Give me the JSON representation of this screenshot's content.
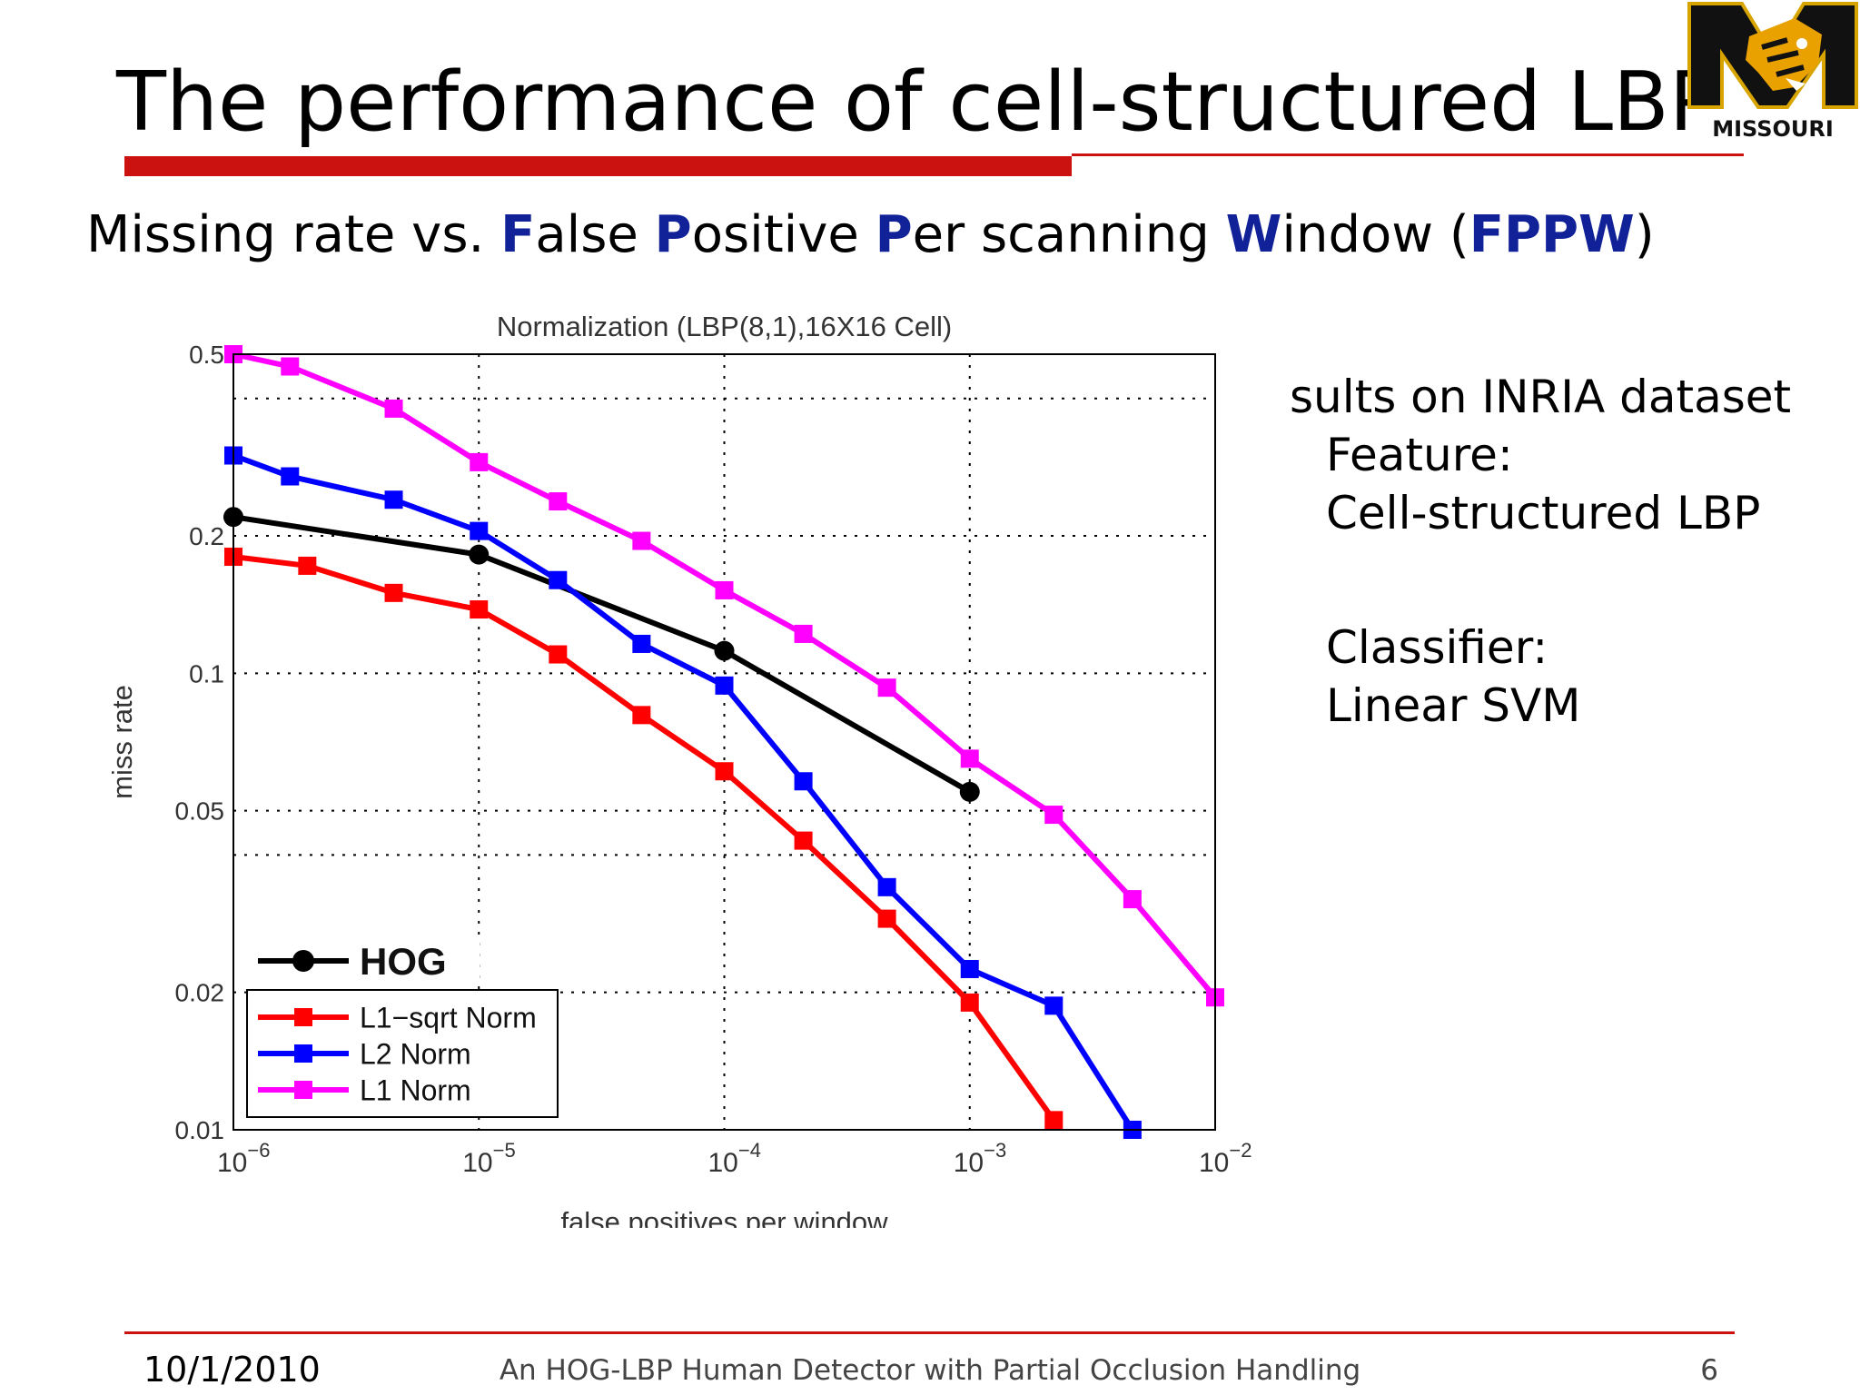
{
  "slide": {
    "title": "The performance of cell-structured LBP",
    "subtitle_parts": [
      {
        "text": "Missing rate vs. ",
        "hl": false
      },
      {
        "text": "F",
        "hl": true
      },
      {
        "text": "alse ",
        "hl": false
      },
      {
        "text": "P",
        "hl": true
      },
      {
        "text": "ositive ",
        "hl": false
      },
      {
        "text": "P",
        "hl": true
      },
      {
        "text": "er scanning ",
        "hl": false
      },
      {
        "text": "W",
        "hl": true
      },
      {
        "text": "indow (",
        "hl": false
      },
      {
        "text": "FPPW",
        "hl": true
      },
      {
        "text": ")",
        "hl": false
      }
    ],
    "side_text": {
      "heading": "sults on INRIA dataset",
      "feature_label": "Feature:",
      "feature_value": "Cell-structured LBP",
      "classifier_label": "Classifier:",
      "classifier_value": "Linear SVM"
    },
    "logo": {
      "text": "MISSOURI",
      "icon": "tiger-m-logo"
    },
    "footer": {
      "date": "10/1/2010",
      "center": "An HOG-LBP Human Detector with Partial Occlusion Handling",
      "page": "6"
    },
    "colors": {
      "accent": "#cc1111",
      "highlight": "#112299"
    }
  },
  "chart_data": {
    "type": "line",
    "title": "Normalization (LBP(8,1),16X16 Cell)",
    "xlabel": "false positives per window",
    "ylabel": "miss rate",
    "xscale": "log",
    "yscale": "log",
    "xlim": [
      1e-06,
      0.01
    ],
    "ylim": [
      0.01,
      0.5
    ],
    "xticks": [
      {
        "value": 1e-06,
        "base": "10",
        "exp": "−6"
      },
      {
        "value": 1e-05,
        "base": "10",
        "exp": "−5"
      },
      {
        "value": 0.0001,
        "base": "10",
        "exp": "−4"
      },
      {
        "value": 0.001,
        "base": "10",
        "exp": "−3"
      },
      {
        "value": 0.01,
        "base": "10",
        "exp": "−2"
      }
    ],
    "yticks": [
      {
        "value": 0.01,
        "label": "0.01"
      },
      {
        "value": 0.02,
        "label": "0.02"
      },
      {
        "value": 0.05,
        "label": "0.05"
      },
      {
        "value": 0.1,
        "label": "0.1"
      },
      {
        "value": 0.2,
        "label": "0.2"
      },
      {
        "value": 0.5,
        "label": "0.5"
      }
    ],
    "ygrid_extra": [
      0.04,
      0.4
    ],
    "grid": true,
    "legend_position": "bottom-left",
    "series": [
      {
        "name": "HOG",
        "color": "#000000",
        "marker": "circle",
        "legend_bold": true,
        "points": [
          [
            1e-06,
            0.22
          ],
          [
            1e-05,
            0.182
          ],
          [
            0.0001,
            0.112
          ],
          [
            0.001,
            0.055
          ]
        ]
      },
      {
        "name": "L1−sqrt Norm",
        "color": "#ff0000",
        "marker": "square",
        "points": [
          [
            1e-06,
            0.18
          ],
          [
            2e-06,
            0.172
          ],
          [
            4.5e-06,
            0.15
          ],
          [
            1e-05,
            0.138
          ],
          [
            2.1e-05,
            0.11
          ],
          [
            4.6e-05,
            0.081
          ],
          [
            0.0001,
            0.061
          ],
          [
            0.00021,
            0.043
          ],
          [
            0.00046,
            0.029
          ],
          [
            0.001,
            0.019
          ],
          [
            0.0022,
            0.0105
          ]
        ]
      },
      {
        "name": "L2 Norm",
        "color": "#0000ff",
        "marker": "square",
        "points": [
          [
            1e-06,
            0.3
          ],
          [
            1.7e-06,
            0.27
          ],
          [
            4.5e-06,
            0.24
          ],
          [
            1e-05,
            0.205
          ],
          [
            2.1e-05,
            0.16
          ],
          [
            4.6e-05,
            0.116
          ],
          [
            0.0001,
            0.094
          ],
          [
            0.00021,
            0.058
          ],
          [
            0.00046,
            0.034
          ],
          [
            0.001,
            0.0225
          ],
          [
            0.0022,
            0.0187
          ],
          [
            0.0046,
            0.01
          ]
        ]
      },
      {
        "name": "L1 Norm",
        "color": "#ff00ff",
        "marker": "square",
        "points": [
          [
            1e-06,
            0.5
          ],
          [
            1.7e-06,
            0.47
          ],
          [
            4.5e-06,
            0.38
          ],
          [
            1e-05,
            0.29
          ],
          [
            2.1e-05,
            0.238
          ],
          [
            4.6e-05,
            0.195
          ],
          [
            0.0001,
            0.152
          ],
          [
            0.00021,
            0.122
          ],
          [
            0.00046,
            0.093
          ],
          [
            0.001,
            0.065
          ],
          [
            0.0022,
            0.049
          ],
          [
            0.0046,
            0.032
          ],
          [
            0.01,
            0.0195
          ]
        ]
      }
    ]
  }
}
